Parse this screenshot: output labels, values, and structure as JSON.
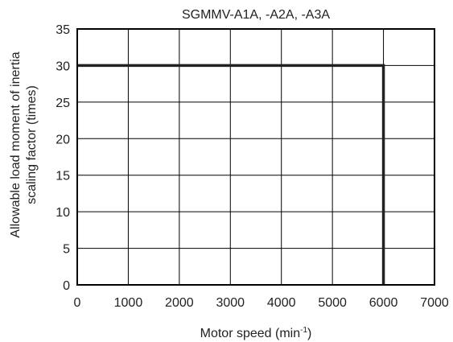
{
  "chart_data": {
    "type": "line",
    "title": "SGMMV-A1A, -A2A, -A3A",
    "xlabel": "Motor speed (min",
    "xlabel_superscript": "-1",
    "xlabel_suffix": ")",
    "ylabel_line1": "Allowable load moment of inertia",
    "ylabel_line2": "scaling factor (times)",
    "xlim": [
      0,
      7000
    ],
    "ylim": [
      0,
      35
    ],
    "xticks": [
      "0",
      "1000",
      "2000",
      "3000",
      "4000",
      "5000",
      "6000",
      "7000"
    ],
    "yticks": [
      "0",
      "5",
      "10",
      "15",
      "20",
      "25",
      "30",
      "35"
    ],
    "grid": true,
    "series": [
      {
        "x": [
          0,
          6000,
          6000
        ],
        "y": [
          30,
          30,
          0
        ]
      }
    ]
  }
}
